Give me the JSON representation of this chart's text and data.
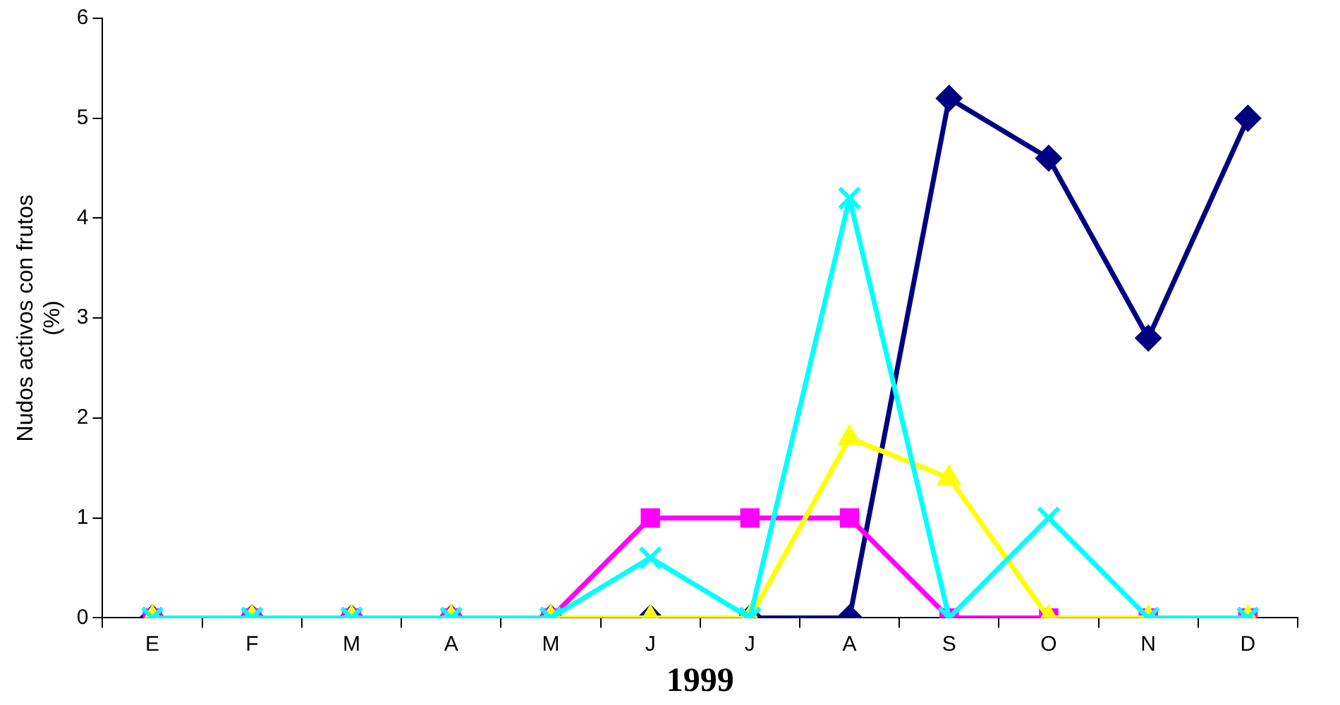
{
  "chart_data": {
    "type": "line",
    "xlabel": "1999",
    "ylabel": "Nudos activos con frutos (%)",
    "categories": [
      "E",
      "F",
      "M",
      "A",
      "M",
      "J",
      "J",
      "A",
      "S",
      "O",
      "N",
      "D"
    ],
    "series": [
      {
        "color": "#000080",
        "marker": "diamond",
        "values": [
          0,
          0,
          0,
          0,
          0,
          0,
          0,
          0,
          5.2,
          4.6,
          2.8,
          5.0
        ]
      },
      {
        "color": "#ff00ff",
        "marker": "square",
        "values": [
          0,
          0,
          0,
          0,
          0,
          1,
          1,
          1,
          0,
          0,
          0,
          0
        ]
      },
      {
        "color": "#ffff00",
        "marker": "triangle",
        "values": [
          0,
          0,
          0,
          0,
          0,
          0,
          0,
          1.8,
          1.4,
          0,
          0,
          0
        ]
      },
      {
        "color": "#00ffff",
        "marker": "cross",
        "values": [
          0,
          0,
          0,
          0,
          0,
          0.6,
          0,
          4.2,
          0,
          1,
          0,
          0
        ]
      }
    ],
    "ylim": [
      0,
      6
    ],
    "yticks": [
      0,
      1,
      2,
      3,
      4,
      5,
      6
    ],
    "grid": false,
    "legend": false
  }
}
